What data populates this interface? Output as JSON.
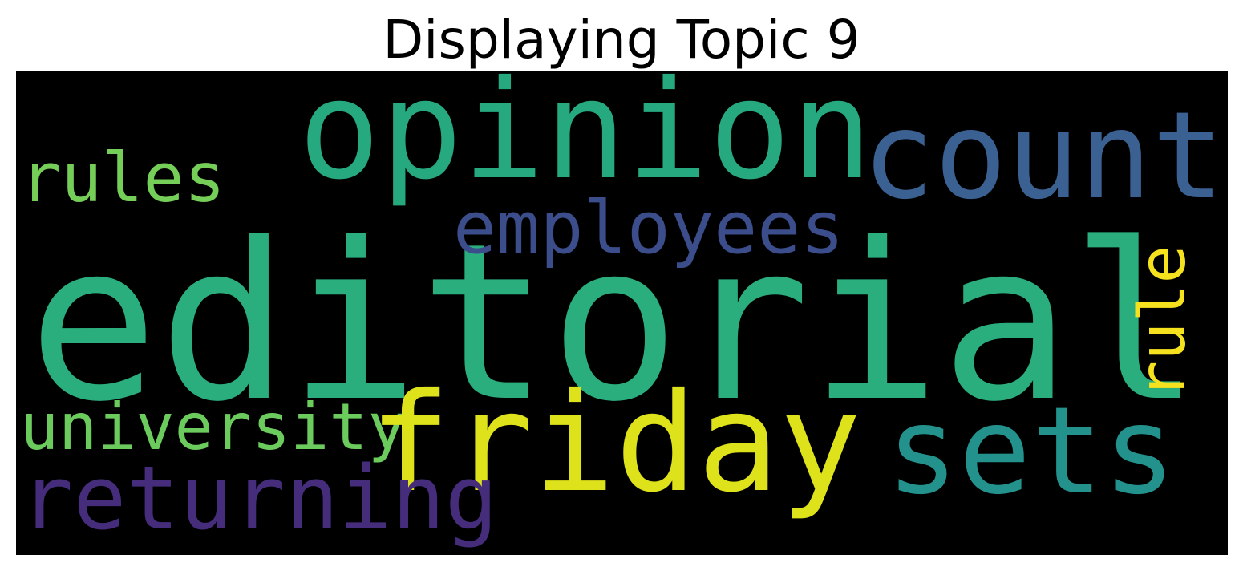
{
  "title": "Displaying Topic 9",
  "wordcloud": {
    "background": "#000000",
    "words": {
      "editorial": {
        "text": "editorial",
        "color": "#2aae7e"
      },
      "opinion": {
        "text": "opinion",
        "color": "#26a97f"
      },
      "county": {
        "text": "county",
        "color": "#3a6192"
      },
      "friday": {
        "text": "friday",
        "color": "#dde21a"
      },
      "sets": {
        "text": "sets",
        "color": "#23918c"
      },
      "employees": {
        "text": "employees",
        "color": "#3c4d8c"
      },
      "rules": {
        "text": "rules",
        "color": "#75ce58"
      },
      "university": {
        "text": "university",
        "color": "#6bcc5d"
      },
      "returning": {
        "text": "returning",
        "color": "#452d7c"
      },
      "rule": {
        "text": "rule",
        "color": "#f6e11f"
      }
    }
  }
}
